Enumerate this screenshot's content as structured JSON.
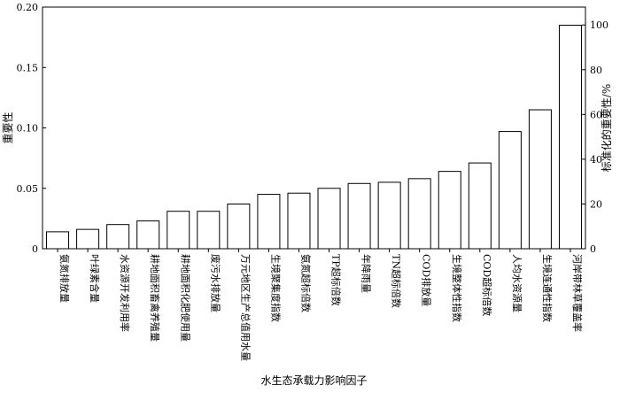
{
  "chart_data": {
    "type": "bar",
    "xlabel": "水生态承载力影响因子",
    "ylabel": "重要性",
    "y2label": "标准化的重要性/%",
    "ylim": [
      0,
      0.2
    ],
    "yticks": [
      "0",
      "0.05",
      "0.10",
      "0.15",
      "0.20"
    ],
    "y2lim": [
      0,
      108
    ],
    "y2ticks": [
      "0",
      "20",
      "40",
      "60",
      "80",
      "100"
    ],
    "grid": false,
    "bar_fill": "#ffffff",
    "bar_stroke": "#000000",
    "categories": [
      "氨氮排放量",
      "叶绿素含量",
      "水资源开发利用率",
      "耕地面积畜禽养殖量",
      "耕地面积化肥使用量",
      "废污水排放量",
      "万元地区生产总值用水量",
      "生境聚集度指数",
      "氨氮超标倍数",
      "TP超标倍数",
      "年降雨量",
      "TN超标倍数",
      "COD排放量",
      "生境整体性指数",
      "COD超标倍数",
      "人均水资源量",
      "生境连通性指数",
      "河岸带林草覆盖率"
    ],
    "values": [
      0.014,
      0.016,
      0.02,
      0.023,
      0.031,
      0.031,
      0.037,
      0.045,
      0.046,
      0.05,
      0.054,
      0.055,
      0.058,
      0.064,
      0.071,
      0.097,
      0.115,
      0.185
    ],
    "normalized_values": [
      7.5,
      8.6,
      10.8,
      12.4,
      16.8,
      16.8,
      20.0,
      24.3,
      24.9,
      27.0,
      29.2,
      29.7,
      31.4,
      34.6,
      38.4,
      52.4,
      62.2,
      100
    ]
  }
}
